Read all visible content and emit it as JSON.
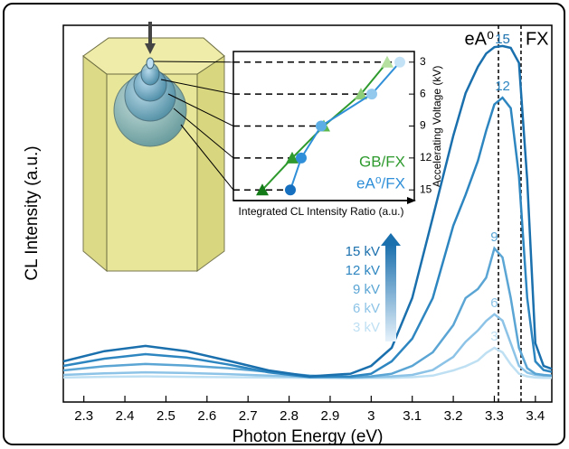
{
  "chart_data": [
    {
      "type": "line",
      "x_label": "Photon Energy (eV)",
      "y_label": "CL Intensity (a.u.)",
      "x": [
        2.25,
        2.35,
        2.45,
        2.55,
        2.65,
        2.75,
        2.85,
        2.95,
        3.0,
        3.05,
        3.1,
        3.15,
        3.2,
        3.23,
        3.26,
        3.28,
        3.3,
        3.32,
        3.34,
        3.36,
        3.38,
        3.4,
        3.42,
        3.44
      ],
      "series": [
        {
          "name": "15 kV",
          "peak_label": "15",
          "color": "#1a6fad",
          "values": [
            0.108,
            0.135,
            0.149,
            0.135,
            0.11,
            0.084,
            0.068,
            0.075,
            0.096,
            0.144,
            0.276,
            0.49,
            0.707,
            0.82,
            0.89,
            0.925,
            0.942,
            0.945,
            0.94,
            0.9,
            0.59,
            0.156,
            0.096,
            0.088
          ]
        },
        {
          "name": "12 kV",
          "peak_label": "12",
          "color": "#2e86c1",
          "values": [
            0.096,
            0.115,
            0.127,
            0.118,
            0.1,
            0.079,
            0.066,
            0.068,
            0.075,
            0.108,
            0.168,
            0.276,
            0.468,
            0.55,
            0.64,
            0.72,
            0.79,
            0.808,
            0.78,
            0.6,
            0.276,
            0.108,
            0.085,
            0.08
          ]
        },
        {
          "name": "9 kV",
          "peak_label": "9",
          "color": "#5aa5d4",
          "values": [
            0.084,
            0.095,
            0.101,
            0.097,
            0.09,
            0.08,
            0.07,
            0.066,
            0.068,
            0.075,
            0.096,
            0.132,
            0.204,
            0.276,
            0.3,
            0.33,
            0.408,
            0.384,
            0.276,
            0.144,
            0.09,
            0.075,
            0.072,
            0.07
          ]
        },
        {
          "name": "6 kV",
          "peak_label": "6",
          "color": "#8cc3e6",
          "values": [
            0.072,
            0.076,
            0.079,
            0.077,
            0.074,
            0.07,
            0.066,
            0.065,
            0.066,
            0.068,
            0.072,
            0.085,
            0.12,
            0.16,
            0.19,
            0.215,
            0.233,
            0.216,
            0.156,
            0.096,
            0.078,
            0.072,
            0.07,
            0.07
          ]
        },
        {
          "name": "3 kV",
          "peak_label": "3",
          "color": "#bfe0f3",
          "values": [
            0.065,
            0.067,
            0.068,
            0.067,
            0.066,
            0.065,
            0.064,
            0.063,
            0.064,
            0.064,
            0.066,
            0.07,
            0.084,
            0.095,
            0.11,
            0.13,
            0.144,
            0.132,
            0.1,
            0.075,
            0.068,
            0.065,
            0.064,
            0.064
          ]
        }
      ],
      "xlim": [
        2.25,
        3.44
      ],
      "xticks": [
        2.3,
        2.4,
        2.5,
        2.6,
        2.7,
        2.8,
        2.9,
        3.0,
        3.1,
        3.2,
        3.3,
        3.4
      ],
      "ylim": [
        0,
        1
      ],
      "reference_lines": [
        {
          "x": 3.31,
          "label": "eA⁰"
        },
        {
          "x": 3.365,
          "label": "FX"
        }
      ]
    },
    {
      "type": "line",
      "x_label": "Integrated CL Intensity Ratio (a.u.)",
      "y_label": "Accelerating Voltage (kV)",
      "xlim": [
        0,
        1
      ],
      "ylim": [
        2,
        16
      ],
      "y_reversed": true,
      "yticks": [
        3,
        6,
        9,
        12,
        15
      ],
      "series": [
        {
          "name": "GB/FX",
          "color": "#2e9a2e",
          "marker": "triangle",
          "x": [
            0.85,
            0.705,
            0.5,
            0.325,
            0.16
          ],
          "values": [
            3,
            6,
            9,
            12,
            15
          ],
          "marker_colors": [
            "#b5e0a0",
            "#8fce78",
            "#5cb84a",
            "#2e9a2e",
            "#137a18"
          ]
        },
        {
          "name": "eA⁰/FX",
          "color": "#2f8fd8",
          "marker": "circle",
          "x": [
            0.92,
            0.765,
            0.485,
            0.375,
            0.315
          ],
          "values": [
            3,
            6,
            9,
            12,
            15
          ],
          "marker_colors": [
            "#c4e2f6",
            "#94c9ee",
            "#5eaee6",
            "#2f8fd8",
            "#1670bf"
          ]
        }
      ]
    }
  ]
}
